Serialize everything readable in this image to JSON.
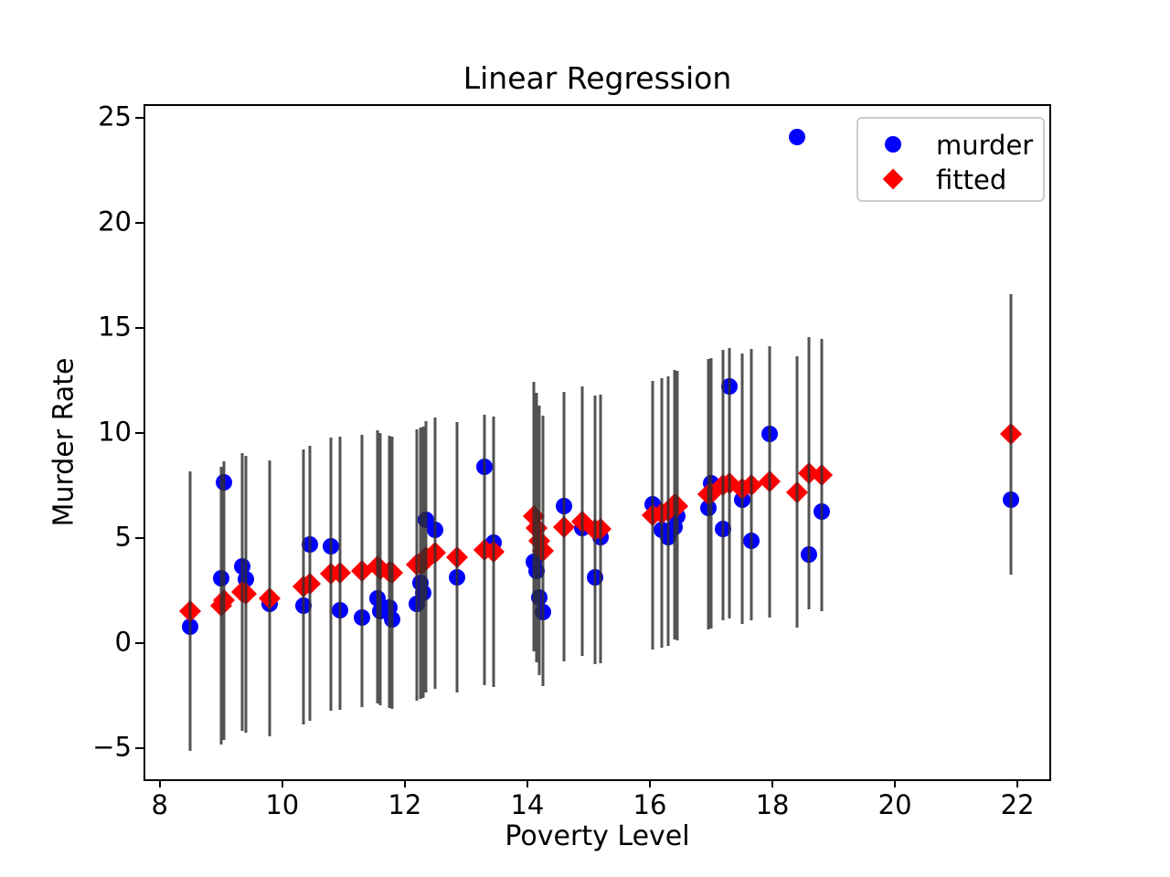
{
  "figure": {
    "background": "#ffffff",
    "title": "Linear Regression",
    "xlabel": "Poverty Level",
    "ylabel": "Murder Rate"
  },
  "legend": {
    "items": [
      {
        "label": "murder",
        "marker": "circle-marker-icon",
        "color": "#0000ff"
      },
      {
        "label": "fitted",
        "marker": "diamond-marker-icon",
        "color": "#ff0000"
      }
    ],
    "position": "upper right",
    "border_color": "#cccccc"
  },
  "chart_data": {
    "type": "scatter",
    "title": "Linear Regression",
    "xlabel": "Poverty Level",
    "ylabel": "Murder Rate",
    "xlim": [
      7.75,
      22.55
    ],
    "ylim": [
      -6.5,
      25.6
    ],
    "grid": false,
    "legend_position": "upper right",
    "xticks": [
      8,
      10,
      12,
      14,
      16,
      18,
      20,
      22
    ],
    "xtick_labels": [
      "8",
      "10",
      "12",
      "14",
      "16",
      "18",
      "20",
      "22"
    ],
    "yticks": [
      25,
      20,
      15,
      10,
      5,
      0,
      -5
    ],
    "ytick_labels": [
      "25",
      "20",
      "15",
      "10",
      "5",
      "0",
      "−5"
    ],
    "series": [
      {
        "name": "murder",
        "marker": "circle",
        "color": "#0000ff"
      },
      {
        "name": "fitted",
        "marker": "diamond",
        "color": "#ff0000"
      }
    ],
    "error_bar_color": "#2d2d2d",
    "error_bar_meaning": "vertical interval centered on fitted value, half-width err",
    "points": [
      {
        "x": 8.5,
        "murder": 0.8,
        "fitted": 1.55,
        "err": 6.65
      },
      {
        "x": 9.0,
        "murder": 3.1,
        "fitted": 1.8,
        "err": 6.62
      },
      {
        "x": 9.05,
        "murder": 7.65,
        "fitted": 2.05,
        "err": 6.62
      },
      {
        "x": 9.35,
        "murder": 3.65,
        "fitted": 2.45,
        "err": 6.6
      },
      {
        "x": 9.4,
        "murder": 3.05,
        "fitted": 2.35,
        "err": 6.59
      },
      {
        "x": 9.8,
        "murder": 1.9,
        "fitted": 2.15,
        "err": 6.57
      },
      {
        "x": 10.35,
        "murder": 1.8,
        "fitted": 2.7,
        "err": 6.54
      },
      {
        "x": 10.45,
        "murder": 4.7,
        "fitted": 2.85,
        "err": 6.53
      },
      {
        "x": 10.8,
        "murder": 4.6,
        "fitted": 3.3,
        "err": 6.51
      },
      {
        "x": 10.95,
        "murder": 1.6,
        "fitted": 3.35,
        "err": 6.5
      },
      {
        "x": 11.3,
        "murder": 1.25,
        "fitted": 3.45,
        "err": 6.49
      },
      {
        "x": 11.55,
        "murder": 2.15,
        "fitted": 3.65,
        "err": 6.48
      },
      {
        "x": 11.6,
        "murder": 1.55,
        "fitted": 3.55,
        "err": 6.47
      },
      {
        "x": 11.75,
        "murder": 1.7,
        "fitted": 3.4,
        "err": 6.47
      },
      {
        "x": 11.8,
        "murder": 1.15,
        "fitted": 3.35,
        "err": 6.47
      },
      {
        "x": 12.2,
        "murder": 1.9,
        "fitted": 3.75,
        "err": 6.45
      },
      {
        "x": 12.25,
        "murder": 2.9,
        "fitted": 3.8,
        "err": 6.45
      },
      {
        "x": 12.3,
        "murder": 2.4,
        "fitted": 3.85,
        "err": 6.45
      },
      {
        "x": 12.35,
        "murder": 5.9,
        "fitted": 4.1,
        "err": 6.45
      },
      {
        "x": 12.5,
        "murder": 5.4,
        "fitted": 4.3,
        "err": 6.44
      },
      {
        "x": 12.85,
        "murder": 3.15,
        "fitted": 4.1,
        "err": 6.43
      },
      {
        "x": 13.3,
        "murder": 8.4,
        "fitted": 4.45,
        "err": 6.42
      },
      {
        "x": 13.45,
        "murder": 4.8,
        "fitted": 4.35,
        "err": 6.42
      },
      {
        "x": 14.1,
        "murder": 3.9,
        "fitted": 6.05,
        "err": 6.41
      },
      {
        "x": 14.15,
        "murder": 3.45,
        "fitted": 5.5,
        "err": 6.41
      },
      {
        "x": 14.2,
        "murder": 2.2,
        "fitted": 4.9,
        "err": 6.41
      },
      {
        "x": 14.25,
        "murder": 1.5,
        "fitted": 4.4,
        "err": 6.41
      },
      {
        "x": 14.6,
        "murder": 6.55,
        "fitted": 5.55,
        "err": 6.4
      },
      {
        "x": 14.9,
        "murder": 5.5,
        "fitted": 5.8,
        "err": 6.4
      },
      {
        "x": 15.1,
        "murder": 3.15,
        "fitted": 5.4,
        "err": 6.4
      },
      {
        "x": 15.2,
        "murder": 5.05,
        "fitted": 5.45,
        "err": 6.4
      },
      {
        "x": 16.05,
        "murder": 6.6,
        "fitted": 6.1,
        "err": 6.4
      },
      {
        "x": 16.2,
        "murder": 5.4,
        "fitted": 6.2,
        "err": 6.41
      },
      {
        "x": 16.3,
        "murder": 5.05,
        "fitted": 6.3,
        "err": 6.41
      },
      {
        "x": 16.4,
        "murder": 5.55,
        "fitted": 6.6,
        "err": 6.41
      },
      {
        "x": 16.45,
        "murder": 6.05,
        "fitted": 6.55,
        "err": 6.41
      },
      {
        "x": 16.95,
        "murder": 6.45,
        "fitted": 7.1,
        "err": 6.42
      },
      {
        "x": 17.0,
        "murder": 7.6,
        "fitted": 7.15,
        "err": 6.42
      },
      {
        "x": 17.2,
        "murder": 5.45,
        "fitted": 7.55,
        "err": 6.43
      },
      {
        "x": 17.3,
        "murder": 12.2,
        "fitted": 7.6,
        "err": 6.43
      },
      {
        "x": 17.5,
        "murder": 6.85,
        "fitted": 7.35,
        "err": 6.43
      },
      {
        "x": 17.65,
        "murder": 4.9,
        "fitted": 7.55,
        "err": 6.44
      },
      {
        "x": 17.95,
        "murder": 9.95,
        "fitted": 7.7,
        "err": 6.45
      },
      {
        "x": 18.4,
        "murder": 24.1,
        "fitted": 7.2,
        "err": 6.46
      },
      {
        "x": 18.6,
        "murder": 4.25,
        "fitted": 8.1,
        "err": 6.47
      },
      {
        "x": 18.8,
        "murder": 6.25,
        "fitted": 8.0,
        "err": 6.48
      },
      {
        "x": 21.9,
        "murder": 6.85,
        "fitted": 9.95,
        "err": 6.67
      }
    ]
  }
}
